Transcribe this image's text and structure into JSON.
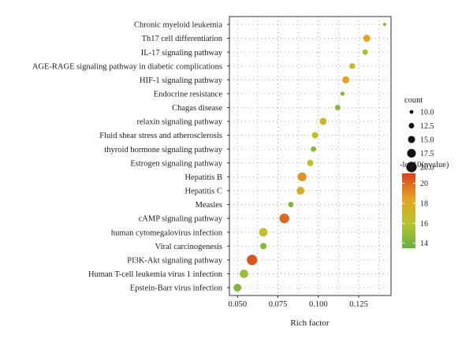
{
  "chart_data": {
    "type": "scatter",
    "title": "",
    "xlabel": "Rich factor",
    "ylabel": "",
    "xlim": [
      0.045,
      0.145
    ],
    "x_ticks": [
      0.05,
      0.075,
      0.1,
      0.125
    ],
    "x_tick_labels": [
      "0.050",
      "0.075",
      "0.100",
      "0.125"
    ],
    "grid": true,
    "legend_placement": "right",
    "categories": [
      "Chronic myeloid leukemia",
      "Th17 cell differentiation",
      "IL-17 signaling pathway",
      "AGE-RAGE signaling pathway in diabetic complications",
      "HIF-1 signaling pathway",
      "Endocrine resistance",
      "Chagas disease",
      "relaxin signaling pathway",
      "Fluid shear stress and atherosclerosis",
      "thyroid hormone signaling pathway",
      "Estrogen signaling pathway",
      "Hepatitis B",
      "Hepatitis C",
      "Measles",
      "cAMP signaling pathway",
      "human cytomegalovirus infection",
      "Viral carcinogenesis",
      "PI3K-Akt signaling pathway",
      "Human T-cell leukemia virus 1 infection",
      "Epstein-Barr virus infection"
    ],
    "points": [
      {
        "term": "Chronic myeloid leukemia",
        "rich_factor": 0.141,
        "count": 9,
        "neg_log10_p": 14.5
      },
      {
        "term": "Th17 cell differentiation",
        "rich_factor": 0.13,
        "count": 15,
        "neg_log10_p": 18.5
      },
      {
        "term": "IL-17 signaling pathway",
        "rich_factor": 0.129,
        "count": 12.5,
        "neg_log10_p": 15.5
      },
      {
        "term": "AGE-RAGE signaling pathway in diabetic complications",
        "rich_factor": 0.121,
        "count": 13,
        "neg_log10_p": 17.0
      },
      {
        "term": "HIF-1 signaling pathway",
        "rich_factor": 0.117,
        "count": 15,
        "neg_log10_p": 18.5
      },
      {
        "term": "Endocrine resistance",
        "rich_factor": 0.115,
        "count": 10.5,
        "neg_log10_p": 14.3
      },
      {
        "term": "Chagas disease",
        "rich_factor": 0.112,
        "count": 12.5,
        "neg_log10_p": 14.5
      },
      {
        "term": "relaxin signaling pathway",
        "rich_factor": 0.103,
        "count": 15,
        "neg_log10_p": 17.0
      },
      {
        "term": "Fluid shear stress and atherosclerosis",
        "rich_factor": 0.098,
        "count": 14,
        "neg_log10_p": 16.5
      },
      {
        "term": "thyroid hormone signaling pathway",
        "rich_factor": 0.097,
        "count": 12.5,
        "neg_log10_p": 14.5
      },
      {
        "term": "Estrogen signaling pathway",
        "rich_factor": 0.095,
        "count": 14,
        "neg_log10_p": 16.5
      },
      {
        "term": "Hepatitis B",
        "rich_factor": 0.09,
        "count": 17.5,
        "neg_log10_p": 19.0
      },
      {
        "term": "Hepatitis C",
        "rich_factor": 0.089,
        "count": 16,
        "neg_log10_p": 17.5
      },
      {
        "term": "Measles",
        "rich_factor": 0.083,
        "count": 12.5,
        "neg_log10_p": 14.3
      },
      {
        "term": "cAMP signaling pathway",
        "rich_factor": 0.079,
        "count": 19,
        "neg_log10_p": 20.0
      },
      {
        "term": "human cytomegalovirus infection",
        "rich_factor": 0.066,
        "count": 17,
        "neg_log10_p": 16.5
      },
      {
        "term": "Viral carcinogenesis",
        "rich_factor": 0.066,
        "count": 14,
        "neg_log10_p": 14.5
      },
      {
        "term": "PI3K-Akt signaling pathway",
        "rich_factor": 0.059,
        "count": 20,
        "neg_log10_p": 20.5
      },
      {
        "term": "Human T-cell leukemia virus 1 infection",
        "rich_factor": 0.054,
        "count": 17,
        "neg_log10_p": 15.0
      },
      {
        "term": "Epstein-Barr virus infection",
        "rich_factor": 0.05,
        "count": 16,
        "neg_log10_p": 14.3
      }
    ],
    "size_legend": {
      "title": "count",
      "values": [
        10.0,
        12.5,
        15.0,
        17.5,
        20.0
      ],
      "labels": [
        "10.0",
        "12.5",
        "15.0",
        "17.5",
        "20.0"
      ]
    },
    "color_legend": {
      "title": "-log10(pvalue)",
      "min": 13.5,
      "max": 21,
      "ticks": [
        14,
        16,
        18,
        20
      ],
      "tick_labels": [
        "14",
        "16",
        "18",
        "20"
      ],
      "colors": [
        "#6ab044",
        "#b6c52c",
        "#e3a51f",
        "#d9401f"
      ]
    }
  }
}
